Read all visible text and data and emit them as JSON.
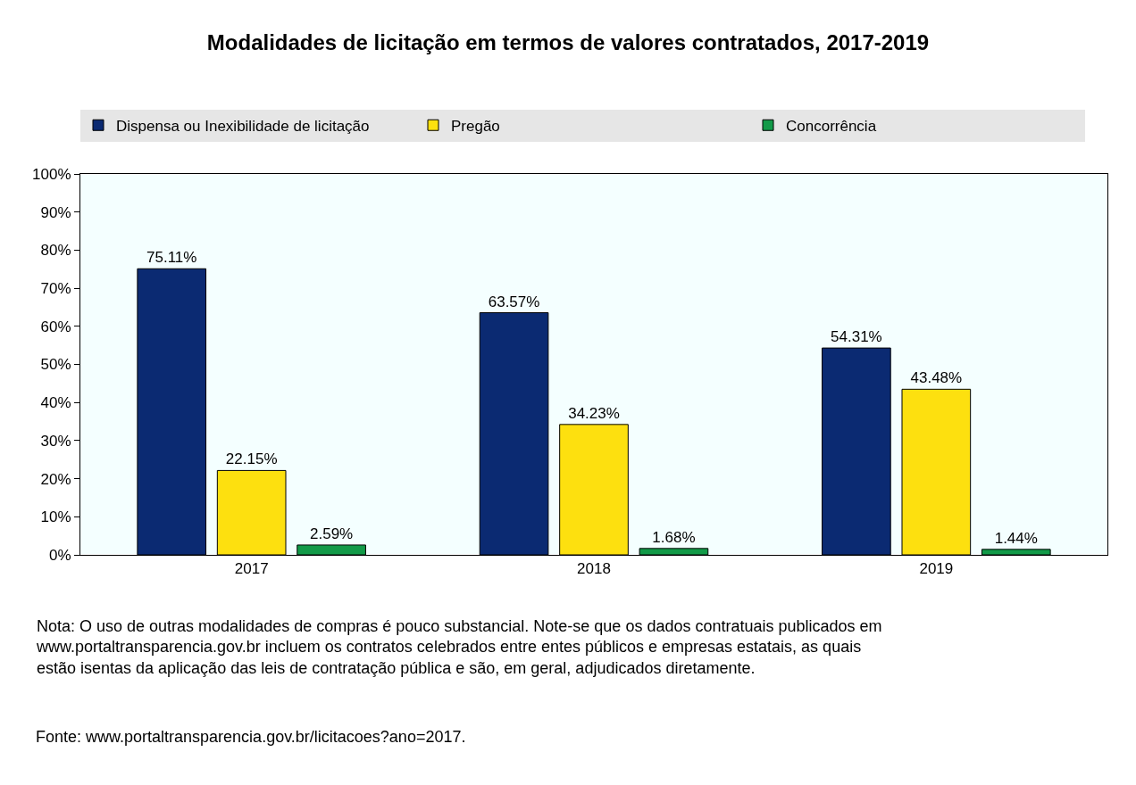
{
  "chart_data": {
    "type": "bar",
    "title": "Modalidades de licitação em termos de valores contratados, 2017-2019",
    "categories": [
      "2017",
      "2018",
      "2019"
    ],
    "series": [
      {
        "name": "Dispensa ou Inexibilidade de licitação",
        "color": "#0b2a72",
        "values": [
          75.11,
          63.57,
          54.31
        ],
        "value_labels": [
          "75.11%",
          "63.57%",
          "54.31%"
        ]
      },
      {
        "name": "Pregão",
        "color": "#fde00f",
        "values": [
          22.15,
          34.23,
          43.48
        ],
        "value_labels": [
          "22.15%",
          "34.23%",
          "43.48%"
        ]
      },
      {
        "name": "Concorrência",
        "color": "#129a48",
        "values": [
          2.59,
          1.68,
          1.44
        ],
        "value_labels": [
          "2.59%",
          "1.68%",
          "1.44%"
        ]
      }
    ],
    "ylim": [
      0,
      100
    ],
    "yticks": [
      {
        "value": 0,
        "label": "0%"
      },
      {
        "value": 10,
        "label": "10%"
      },
      {
        "value": 20,
        "label": "20%"
      },
      {
        "value": 30,
        "label": "30%"
      },
      {
        "value": 40,
        "label": "40%"
      },
      {
        "value": 50,
        "label": "50%"
      },
      {
        "value": 60,
        "label": "60%"
      },
      {
        "value": 70,
        "label": "70%"
      },
      {
        "value": 80,
        "label": "80%"
      },
      {
        "value": 90,
        "label": "90%"
      },
      {
        "value": 100,
        "label": "100%"
      }
    ],
    "grid": false,
    "legend": "top",
    "annotations": [
      "Nota: O uso de outras modalidades de compras é pouco substancial. Note-se que os dados contratuais publicados em www.portaltransparencia.gov.br incluem os contratos celebrados entre entes públicos e empresas estatais, as quais estão isentas da aplicação das leis de contratação pública e são, em geral, adjudicados diretamente.",
      "Fonte: www.portaltransparencia.gov.br/licitacoes?ano=2017."
    ]
  }
}
